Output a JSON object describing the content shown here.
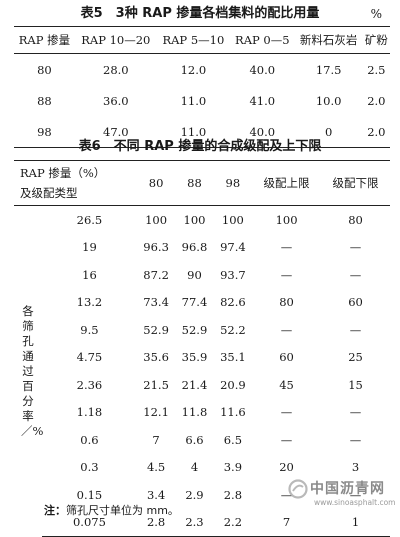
{
  "table5": {
    "caption": "表5　3种 RAP 掺量各档集料的配比用量",
    "unit": "%",
    "headers": [
      "RAP 掺量",
      "RAP 10—20",
      "RAP 5—10",
      "RAP 0—5",
      "新料石灰岩",
      "矿粉"
    ],
    "rows": [
      [
        "80",
        "28.0",
        "12.0",
        "40.0",
        "17.5",
        "2.5"
      ],
      [
        "88",
        "36.0",
        "11.0",
        "41.0",
        "10.0",
        "2.0"
      ],
      [
        "98",
        "47.0",
        "11.0",
        "40.0",
        "0",
        "2.0"
      ]
    ]
  },
  "table6": {
    "caption": "表6　不同 RAP 掺量的合成级配及上下限",
    "header_line1": "RAP 掺量（%）",
    "header_line2": "及级配类型",
    "headers": [
      "80",
      "88",
      "98",
      "级配上限",
      "级配下限"
    ],
    "row_label": "各筛孔通过百分率／%",
    "rows": [
      [
        "26.5",
        "100",
        "100",
        "100",
        "100",
        "80"
      ],
      [
        "19",
        "96.3",
        "96.8",
        "97.4",
        "—",
        "—"
      ],
      [
        "16",
        "87.2",
        "90",
        "93.7",
        "—",
        "—"
      ],
      [
        "13.2",
        "73.4",
        "77.4",
        "82.6",
        "80",
        "60"
      ],
      [
        "9.5",
        "52.9",
        "52.9",
        "52.2",
        "—",
        "—"
      ],
      [
        "4.75",
        "35.6",
        "35.9",
        "35.1",
        "60",
        "25"
      ],
      [
        "2.36",
        "21.5",
        "21.4",
        "20.9",
        "45",
        "15"
      ],
      [
        "1.18",
        "12.1",
        "11.8",
        "11.6",
        "—",
        "—"
      ],
      [
        "0.6",
        "7",
        "6.6",
        "6.5",
        "—",
        "—"
      ],
      [
        "0.3",
        "4.5",
        "4",
        "3.9",
        "20",
        "3"
      ],
      [
        "0.15",
        "3.4",
        "2.9",
        "2.8",
        "—",
        "—"
      ],
      [
        "0.075",
        "2.8",
        "2.3",
        "2.2",
        "7",
        "1"
      ]
    ]
  },
  "note": {
    "label": "注：",
    "text": "筛孔尺寸单位为 mm。"
  },
  "watermark": {
    "name": "中国沥青网",
    "url": "www.sinoasphalt.com",
    "logo_color": "#b9b9b9"
  }
}
